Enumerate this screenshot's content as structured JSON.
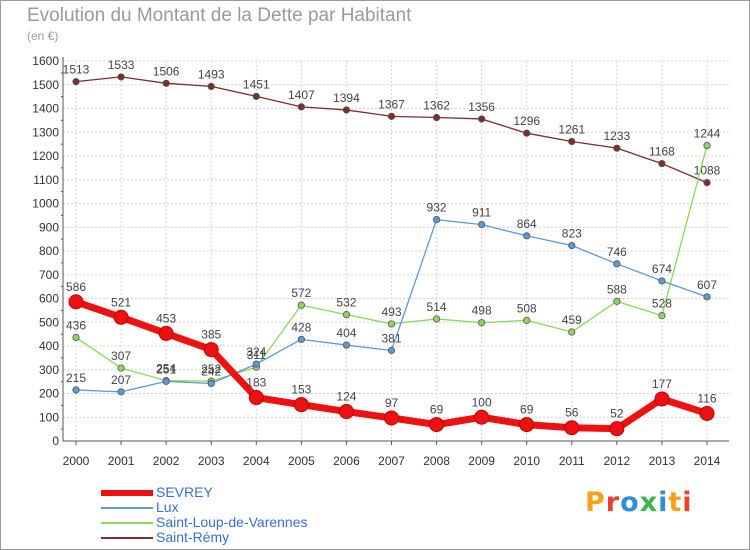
{
  "title": "Evolution du Montant de la Dette par Habitant",
  "subtitle": "(en €)",
  "logo": {
    "text": "Proxiti",
    "letter_colors": [
      "#f5a21b",
      "#e8412f",
      "#2e8fd8",
      "#3fb34f",
      "#2e8fd8",
      "#f5a21b",
      "#e8412f"
    ]
  },
  "chart_data": {
    "type": "line",
    "title": "Evolution du Montant de la Dette par Habitant",
    "subtitle": "(en €)",
    "xlabel": "",
    "ylabel": "",
    "x": [
      2000,
      2001,
      2002,
      2003,
      2004,
      2005,
      2006,
      2007,
      2008,
      2009,
      2010,
      2011,
      2012,
      2013,
      2014
    ],
    "ylim": [
      0,
      1600
    ],
    "yticks": [
      0,
      100,
      200,
      300,
      400,
      500,
      600,
      700,
      800,
      900,
      1000,
      1100,
      1200,
      1300,
      1400,
      1500,
      1600
    ],
    "grid": true,
    "legend": "bottom-left",
    "series": [
      {
        "name": "Saint-Rémy",
        "color": "#7a2e2e",
        "values": [
          1513,
          1533,
          1506,
          1493,
          1451,
          1407,
          1394,
          1367,
          1362,
          1356,
          1296,
          1261,
          1233,
          1168,
          1088
        ]
      },
      {
        "name": "Saint-Loup-de-Varennes",
        "color": "#8ed65a",
        "values": [
          436,
          307,
          254,
          252,
          311,
          572,
          532,
          493,
          514,
          498,
          508,
          459,
          588,
          528,
          1244
        ]
      },
      {
        "name": "Lux",
        "color": "#5b9bd5",
        "values": [
          215,
          207,
          251,
          242,
          324,
          428,
          404,
          381,
          932,
          911,
          864,
          823,
          746,
          674,
          607
        ]
      },
      {
        "name": "SEVREY",
        "color": "#ee1111",
        "values": [
          586,
          521,
          453,
          385,
          183,
          153,
          124,
          97,
          69,
          100,
          69,
          56,
          52,
          177,
          116
        ]
      }
    ]
  }
}
